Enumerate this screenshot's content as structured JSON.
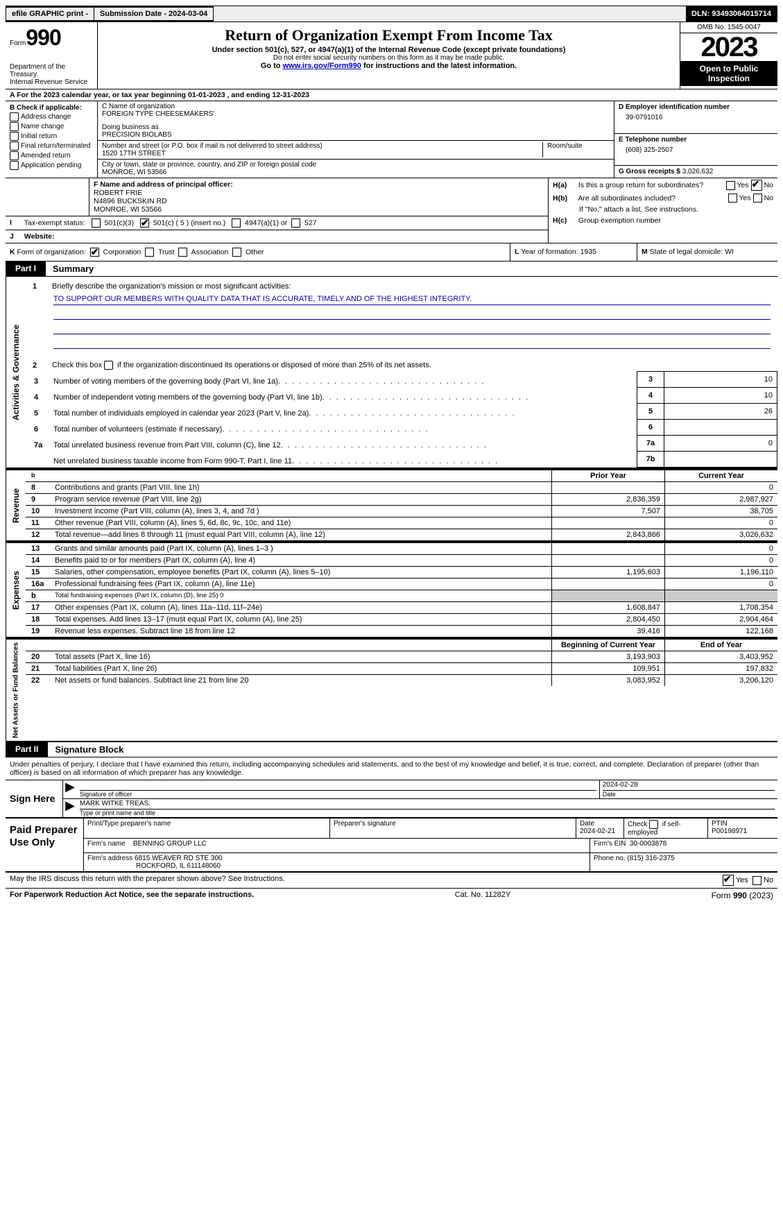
{
  "topbar": {
    "efile": "efile GRAPHIC print -",
    "submission": "Submission Date - 2024-03-04",
    "dln": "DLN: 93493064015714"
  },
  "header": {
    "form_word": "Form",
    "form_num": "990",
    "dept1": "Department of the Treasury",
    "dept2": "Internal Revenue Service",
    "title": "Return of Organization Exempt From Income Tax",
    "sub1": "Under section 501(c), 527, or 4947(a)(1) of the Internal Revenue Code (except private foundations)",
    "sub2": "Do not enter social security numbers on this form as it may be made public.",
    "sub3a": "Go to ",
    "sub3_link": "www.irs.gov/Form990",
    "sub3b": " for instructions and the latest information.",
    "omb": "OMB No. 1545-0047",
    "year": "2023",
    "open": "Open to Public Inspection"
  },
  "line_a": "For the 2023 calendar year, or tax year beginning 01-01-2023   , and ending 12-31-2023",
  "box_b": {
    "hdr": "B Check if applicable:",
    "opts": [
      "Address change",
      "Name change",
      "Initial return",
      "Final return/terminated",
      "Amended return",
      "Application pending"
    ]
  },
  "box_c": {
    "name_lbl": "C Name of organization",
    "name": "FOREIGN TYPE CHEESEMAKERS'",
    "dba_lbl": "Doing business as",
    "dba": "PRECISION BIOLABS",
    "addr_lbl": "Number and street (or P.O. box if mail is not delivered to street address)",
    "room_lbl": "Room/suite",
    "addr": "1520 17TH STREET",
    "city_lbl": "City or town, state or province, country, and ZIP or foreign postal code",
    "city": "MONROE, WI  53566"
  },
  "box_d": {
    "ein_lbl": "D Employer identification number",
    "ein": "39-0791016",
    "tel_lbl": "E Telephone number",
    "tel": "(608) 325-2507",
    "gross_lbl": "G Gross receipts $",
    "gross": "3,026,632"
  },
  "box_f": {
    "lbl": "F  Name and address of principal officer:",
    "l1": "ROBERT FRIE",
    "l2": "N4896 BUCKSKIN RD",
    "l3": "MONROE, WI  53566"
  },
  "box_h": {
    "a": "Is this a group return for subordinates?",
    "b": "Are all subordinates included?",
    "b2": "If \"No,\" attach a list. See instructions.",
    "c": "Group exemption number"
  },
  "tax_status": {
    "lbl": "Tax-exempt status:",
    "o1": "501(c)(3)",
    "o2": "501(c) ( 5 ) (insert no.)",
    "o3": "4947(a)(1) or",
    "o4": "527"
  },
  "website": {
    "lbl": "Website:",
    "val": ""
  },
  "row_k": {
    "lbl": "Form of organization:",
    "opts": [
      "Corporation",
      "Trust",
      "Association",
      "Other"
    ],
    "l_lbl": "Year of formation:",
    "l_val": "1935",
    "m_lbl": "State of legal domicile:",
    "m_val": "WI"
  },
  "parts": {
    "p1": "Part I",
    "p1t": "Summary",
    "p2": "Part II",
    "p2t": "Signature Block"
  },
  "tabs": {
    "ag": "Activities & Governance",
    "rev": "Revenue",
    "exp": "Expenses",
    "net": "Net Assets or Fund Balances"
  },
  "summary": {
    "l1": "Briefly describe the organization's mission or most significant activities:",
    "mission": "TO SUPPORT OUR MEMBERS WITH QUALITY DATA THAT IS ACCURATE, TIMELY AND OF THE HIGHEST INTEGRITY.",
    "l2": "Check this box        if the organization discontinued its operations or disposed of more than 25% of its net assets.",
    "rows_ag": [
      {
        "n": "3",
        "t": "Number of voting members of the governing body (Part VI, line 1a)",
        "rn": "3",
        "v": "10"
      },
      {
        "n": "4",
        "t": "Number of independent voting members of the governing body (Part VI, line 1b)",
        "rn": "4",
        "v": "10"
      },
      {
        "n": "5",
        "t": "Total number of individuals employed in calendar year 2023 (Part V, line 2a)",
        "rn": "5",
        "v": "26"
      },
      {
        "n": "6",
        "t": "Total number of volunteers (estimate if necessary)",
        "rn": "6",
        "v": ""
      },
      {
        "n": "7a",
        "t": "Total unrelated business revenue from Part VIII, column (C), line 12",
        "rn": "7a",
        "v": "0"
      },
      {
        "n": "",
        "t": "Net unrelated business taxable income from Form 990-T, Part I, line 11",
        "rn": "7b",
        "v": ""
      }
    ],
    "col_hdr1": "Prior Year",
    "col_hdr2": "Current Year",
    "rows_rev": [
      {
        "n": "8",
        "t": "Contributions and grants (Part VIII, line 1h)",
        "c1": "",
        "c2": "0"
      },
      {
        "n": "9",
        "t": "Program service revenue (Part VIII, line 2g)",
        "c1": "2,836,359",
        "c2": "2,987,927"
      },
      {
        "n": "10",
        "t": "Investment income (Part VIII, column (A), lines 3, 4, and 7d )",
        "c1": "7,507",
        "c2": "38,705"
      },
      {
        "n": "11",
        "t": "Other revenue (Part VIII, column (A), lines 5, 6d, 8c, 9c, 10c, and 11e)",
        "c1": "",
        "c2": "0"
      },
      {
        "n": "12",
        "t": "Total revenue—add lines 8 through 11 (must equal Part VIII, column (A), line 12)",
        "c1": "2,843,866",
        "c2": "3,026,632"
      }
    ],
    "rows_exp": [
      {
        "n": "13",
        "t": "Grants and similar amounts paid (Part IX, column (A), lines 1–3 )",
        "c1": "",
        "c2": "0"
      },
      {
        "n": "14",
        "t": "Benefits paid to or for members (Part IX, column (A), line 4)",
        "c1": "",
        "c2": "0"
      },
      {
        "n": "15",
        "t": "Salaries, other compensation, employee benefits (Part IX, column (A), lines 5–10)",
        "c1": "1,195,603",
        "c2": "1,196,110"
      },
      {
        "n": "16a",
        "t": "Professional fundraising fees (Part IX, column (A), line 11e)",
        "c1": "",
        "c2": "0"
      },
      {
        "n": "b",
        "t": "Total fundraising expenses (Part IX, column (D), line 25) 0",
        "c1": "GREY",
        "c2": "GREY",
        "small": true
      },
      {
        "n": "17",
        "t": "Other expenses (Part IX, column (A), lines 11a–11d, 11f–24e)",
        "c1": "1,608,847",
        "c2": "1,708,354"
      },
      {
        "n": "18",
        "t": "Total expenses. Add lines 13–17 (must equal Part IX, column (A), line 25)",
        "c1": "2,804,450",
        "c2": "2,904,464"
      },
      {
        "n": "19",
        "t": "Revenue less expenses. Subtract line 18 from line 12",
        "c1": "39,416",
        "c2": "122,168"
      }
    ],
    "net_hdr1": "Beginning of Current Year",
    "net_hdr2": "End of Year",
    "rows_net": [
      {
        "n": "20",
        "t": "Total assets (Part X, line 16)",
        "c1": "3,193,903",
        "c2": "3,403,952"
      },
      {
        "n": "21",
        "t": "Total liabilities (Part X, line 26)",
        "c1": "109,951",
        "c2": "197,832"
      },
      {
        "n": "22",
        "t": "Net assets or fund balances. Subtract line 21 from line 20",
        "c1": "3,083,952",
        "c2": "3,206,120"
      }
    ]
  },
  "sig": {
    "intro": "Under penalties of perjury, I declare that I have examined this return, including accompanying schedules and statements, and to the best of my knowledge and belief, it is true, correct, and complete. Declaration of preparer (other than officer) is based on all information of which preparer has any knowledge.",
    "sign_here": "Sign Here",
    "sig_lbl": "Signature of officer",
    "date_lbl": "Date",
    "date": "2024-02-28",
    "name": "MARK WITKE TREAS.",
    "name_lbl": "Type or print name and title"
  },
  "prep": {
    "title": "Paid Preparer Use Only",
    "h1": "Print/Type preparer's name",
    "h2": "Preparer's signature",
    "h3": "Date",
    "h3v": "2024-02-21",
    "h4": "Check         if self-employed",
    "h5": "PTIN",
    "h5v": "P00198971",
    "firm_lbl": "Firm's name",
    "firm": "BENNING GROUP LLC",
    "ein_lbl": "Firm's EIN",
    "ein": "30-0003878",
    "addr_lbl": "Firm's address",
    "addr1": "6815 WEAVER RD STE 300",
    "addr2": "ROCKFORD, IL  611148060",
    "tel_lbl": "Phone no.",
    "tel": "(815) 316-2375"
  },
  "discuss": "May the IRS discuss this return with the preparer shown above? See Instructions.",
  "footer": {
    "l": "For Paperwork Reduction Act Notice, see the separate instructions.",
    "c": "Cat. No. 11282Y",
    "r": "Form 990 (2023)"
  },
  "yn": {
    "yes": "Yes",
    "no": "No"
  },
  "labels": {
    "I": "I",
    "J": "J",
    "K": "K",
    "L": "L",
    "M": "M",
    "Ha": "H(a)",
    "Hb": "H(b)",
    "Hc": "H(c)",
    "b": "b"
  }
}
